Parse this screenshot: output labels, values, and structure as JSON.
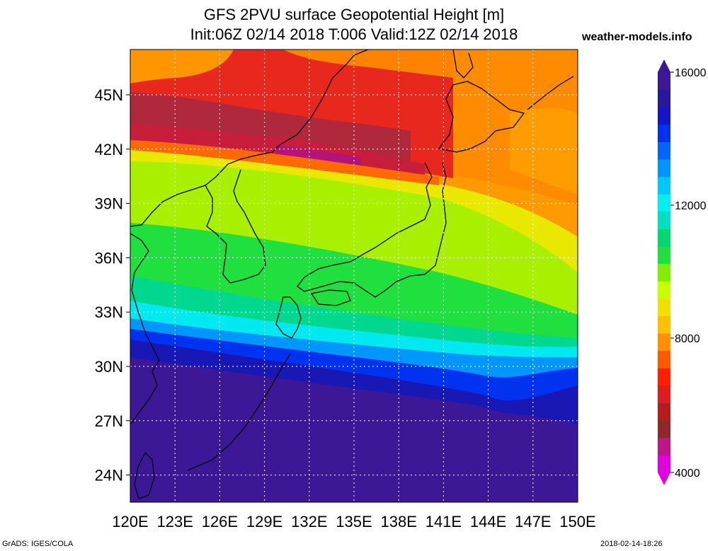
{
  "title": {
    "line1": "GFS 2PVU surface Geopotential Height [m]",
    "line2": "Init:06Z 02/14 2018 T:006 Valid:12Z 02/14 2018"
  },
  "site": "weather-models.info",
  "footer": {
    "left": "GrADS: IGES/COLA",
    "right": "2018-02-14-18:26"
  },
  "map": {
    "lon_labels": [
      "120E",
      "123E",
      "126E",
      "129E",
      "132E",
      "135E",
      "138E",
      "141E",
      "144E",
      "147E",
      "150E"
    ],
    "lat_labels": [
      "45N",
      "42N",
      "39N",
      "36N",
      "33N",
      "30N",
      "27N",
      "24N"
    ],
    "lon_range": [
      120,
      150
    ],
    "lat_range": [
      22.5,
      47.5
    ]
  },
  "colorbar": {
    "labels": [
      "16000",
      "12000",
      "8000",
      "4000"
    ],
    "colors": [
      "#e000e0",
      "#c0148c",
      "#8c2a2a",
      "#b41e1e",
      "#dc1e1e",
      "#ff2000",
      "#ff5a00",
      "#ff9000",
      "#ffc000",
      "#f0e000",
      "#c8ff00",
      "#80f000",
      "#20e040",
      "#00d870",
      "#00e0c0",
      "#00f0f0",
      "#00c8ff",
      "#0096ff",
      "#0064ff",
      "#0032f0",
      "#1414c8",
      "#2818a0",
      "#3c1896"
    ]
  }
}
